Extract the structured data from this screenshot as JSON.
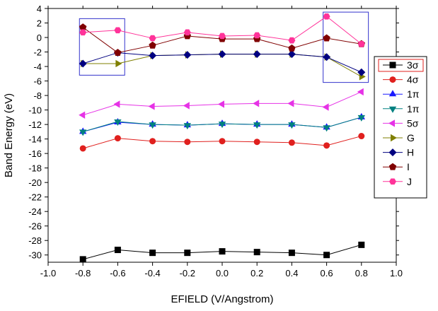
{
  "chart_data": {
    "type": "line",
    "title": "",
    "xlabel": "EFIELD (V/Angstrom)",
    "ylabel": "Band Energy (eV)",
    "xlim": [
      -1.0,
      1.0
    ],
    "ylim": [
      -31,
      4
    ],
    "xticks": [
      -1.0,
      -0.8,
      -0.6,
      -0.4,
      -0.2,
      0.0,
      0.2,
      0.4,
      0.6,
      0.8,
      1.0
    ],
    "xtick_labels": [
      "-1.0",
      "-0.8",
      "-0.6",
      "-0.4",
      "-0.2",
      "0.0",
      "0.2",
      "0.4",
      "0.6",
      "0.8",
      "1.0"
    ],
    "yticks": [
      4,
      2,
      0,
      -2,
      -4,
      -6,
      -8,
      -10,
      -12,
      -14,
      -16,
      -18,
      -20,
      -22,
      -24,
      -26,
      -28,
      -30
    ],
    "ytick_labels": [
      "4",
      "2",
      "0",
      "-2",
      "-4",
      "-6",
      "-8",
      "-10",
      "-12",
      "-14",
      "-16",
      "-18",
      "-20",
      "-22",
      "-24",
      "-26",
      "-28",
      "-30"
    ],
    "x": [
      -0.8,
      -0.6,
      -0.4,
      -0.2,
      0.0,
      0.2,
      0.4,
      0.6,
      0.8
    ],
    "grid": false,
    "legend_position": "right",
    "series": [
      {
        "name": "3σ",
        "color": "#000000",
        "marker": "square",
        "values": [
          -30.6,
          -29.3,
          -29.7,
          -29.7,
          -29.5,
          -29.6,
          -29.7,
          -30.0,
          -28.6
        ]
      },
      {
        "name": "4σ",
        "color": "#e0201e",
        "marker": "circle",
        "values": [
          -15.3,
          -13.9,
          -14.3,
          -14.4,
          -14.3,
          -14.4,
          -14.5,
          -14.9,
          -13.6
        ]
      },
      {
        "name": "1π",
        "color": "#1a1aff",
        "marker": "triangle-up",
        "values": [
          -13.0,
          -11.7,
          -12.0,
          -12.1,
          -11.9,
          -12.0,
          -12.0,
          -12.4,
          -11.0
        ]
      },
      {
        "name": "1π",
        "color": "#008080",
        "marker": "triangle-down",
        "values": [
          -13.0,
          -11.6,
          -12.0,
          -12.1,
          -11.9,
          -12.0,
          -12.0,
          -12.4,
          -11.0
        ]
      },
      {
        "name": "5σ",
        "color": "#e632e6",
        "marker": "triangle-left",
        "values": [
          -10.7,
          -9.2,
          -9.5,
          -9.4,
          -9.2,
          -9.1,
          -9.1,
          -9.6,
          -7.5
        ]
      },
      {
        "name": "G",
        "color": "#7f7f00",
        "marker": "triangle-right",
        "values": [
          -3.6,
          -3.6,
          -2.5,
          -2.4,
          -2.3,
          -2.3,
          -2.3,
          -2.7,
          -5.4
        ]
      },
      {
        "name": "H",
        "color": "#000080",
        "marker": "diamond",
        "values": [
          -3.6,
          -2.1,
          -2.5,
          -2.4,
          -2.3,
          -2.3,
          -2.3,
          -2.7,
          -4.8
        ]
      },
      {
        "name": "I",
        "color": "#800000",
        "marker": "pentagon",
        "values": [
          1.4,
          -2.1,
          -1.1,
          0.2,
          -0.2,
          -0.2,
          -1.5,
          -0.1,
          -0.9
        ]
      },
      {
        "name": "J",
        "color": "#ff3399",
        "marker": "hexagon",
        "values": [
          0.7,
          1.0,
          -0.1,
          0.7,
          0.2,
          0.3,
          -0.4,
          2.9,
          -0.9
        ]
      }
    ],
    "highlight_boxes": [
      {
        "x_range": [
          -0.82,
          -0.56
        ],
        "y_range": [
          -5.2,
          2.6
        ],
        "color": "#3333cc"
      },
      {
        "x_range": [
          0.58,
          0.84
        ],
        "y_range": [
          -6.2,
          3.5
        ],
        "color": "#3333cc"
      }
    ]
  }
}
